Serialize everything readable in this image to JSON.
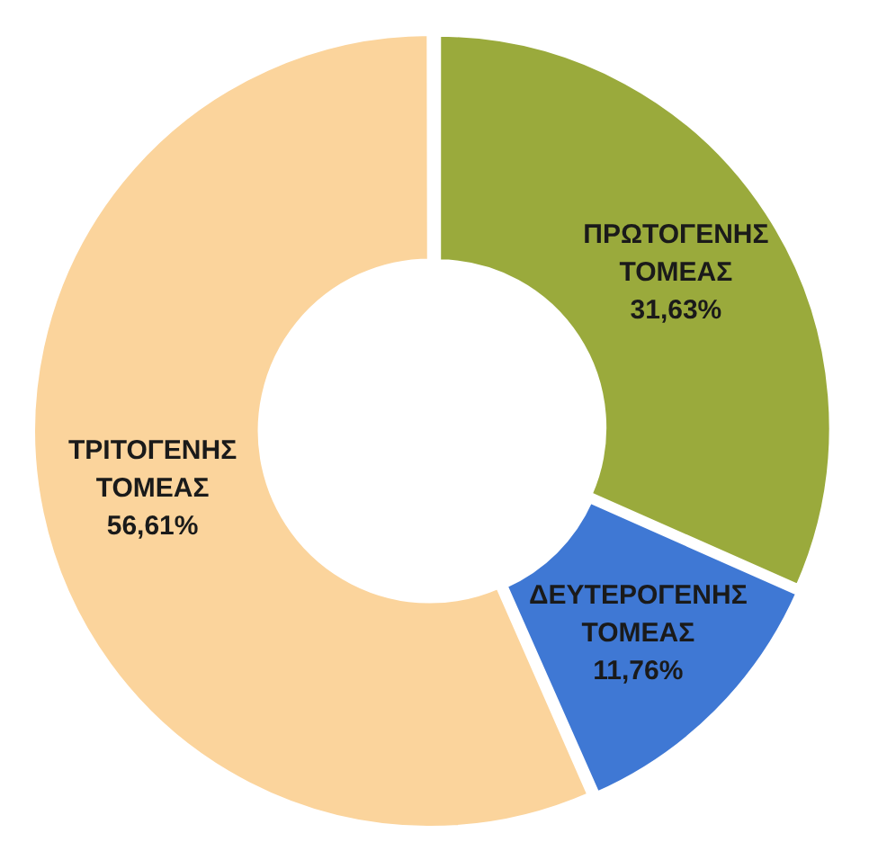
{
  "chart_data": {
    "type": "donut",
    "categories": [
      "ΠΡΩΤΟΓΕΝΗΣ ΤΟΜΕΑΣ",
      "ΔΕΥΤΕΡΟΓΕΝΗΣ ΤΟΜΕΑΣ",
      "ΤΡΙΤΟΓΕΝΗΣ ΤΟΜΕΑΣ"
    ],
    "values": [
      31.63,
      11.76,
      56.61
    ],
    "colors": [
      "#9aaa3c",
      "#3f78d4",
      "#fbd49c"
    ],
    "value_labels": [
      "31,63%",
      "11,76%",
      "56,61%"
    ],
    "legend": false
  }
}
